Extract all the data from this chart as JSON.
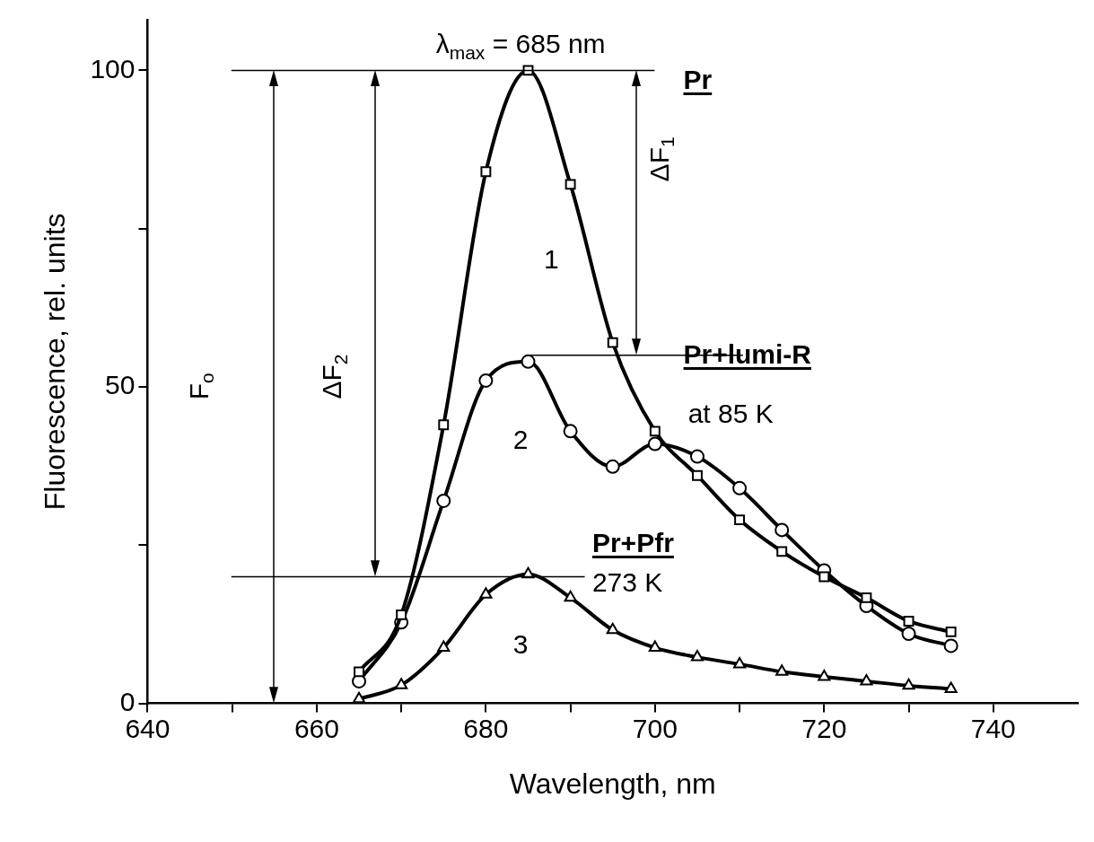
{
  "chart_data": {
    "type": "line",
    "xlabel": "Wavelength, nm",
    "ylabel": "Fluorescence, rel. units",
    "x": [
      665,
      670,
      675,
      680,
      685,
      690,
      695,
      700,
      705,
      710,
      715,
      720,
      725,
      730,
      735
    ],
    "series": [
      {
        "color": "#000000",
        "marker": "square",
        "values": [
          5,
          14,
          44,
          84,
          100,
          82,
          57,
          43,
          36,
          29,
          24,
          20,
          16.7,
          13,
          11.3
        ]
      },
      {
        "color": "#000000",
        "marker": "circle",
        "values": [
          3.5,
          12.8,
          32,
          51,
          54,
          43,
          37.4,
          41,
          39,
          34,
          27.4,
          21,
          15.4,
          11,
          9.1
        ]
      },
      {
        "color": "#000000",
        "marker": "triangle",
        "values": [
          0.7,
          2.9,
          8.8,
          17.2,
          20.4,
          16.7,
          11.6,
          8.8,
          7.3,
          6.2,
          5,
          4.2,
          3.5,
          2.8,
          2.3
        ]
      }
    ],
    "xlim": [
      640,
      750
    ],
    "xticks": [
      640,
      {
        "value": 650,
        "label": null
      },
      660,
      {
        "value": 670,
        "label": null
      },
      680,
      {
        "value": 690,
        "label": null
      },
      700,
      {
        "value": 710,
        "label": null
      },
      720,
      {
        "value": 730,
        "label": null
      },
      740
    ],
    "ylim": [
      0,
      108
    ],
    "yticks": [
      0,
      {
        "value": 25,
        "label": null
      },
      50,
      {
        "value": 75,
        "label": null
      },
      100
    ],
    "ref_lines": [
      {
        "axis": "y",
        "value": 100
      },
      {
        "axis": "y",
        "value": 55
      },
      {
        "axis": "y",
        "value": 20
      }
    ],
    "annotations": [
      "λ$_{max}$ = 685 nm",
      "F$_{o}$",
      "ΔF$_{2}$",
      "ΔF$_{1}$",
      "1",
      "2",
      "3",
      "Pr",
      "Pr+lumi-R",
      "at 85 K",
      "Pr+Pfr",
      "273 K"
    ],
    "grid": false,
    "legend": false,
    "line_style": "solid"
  }
}
